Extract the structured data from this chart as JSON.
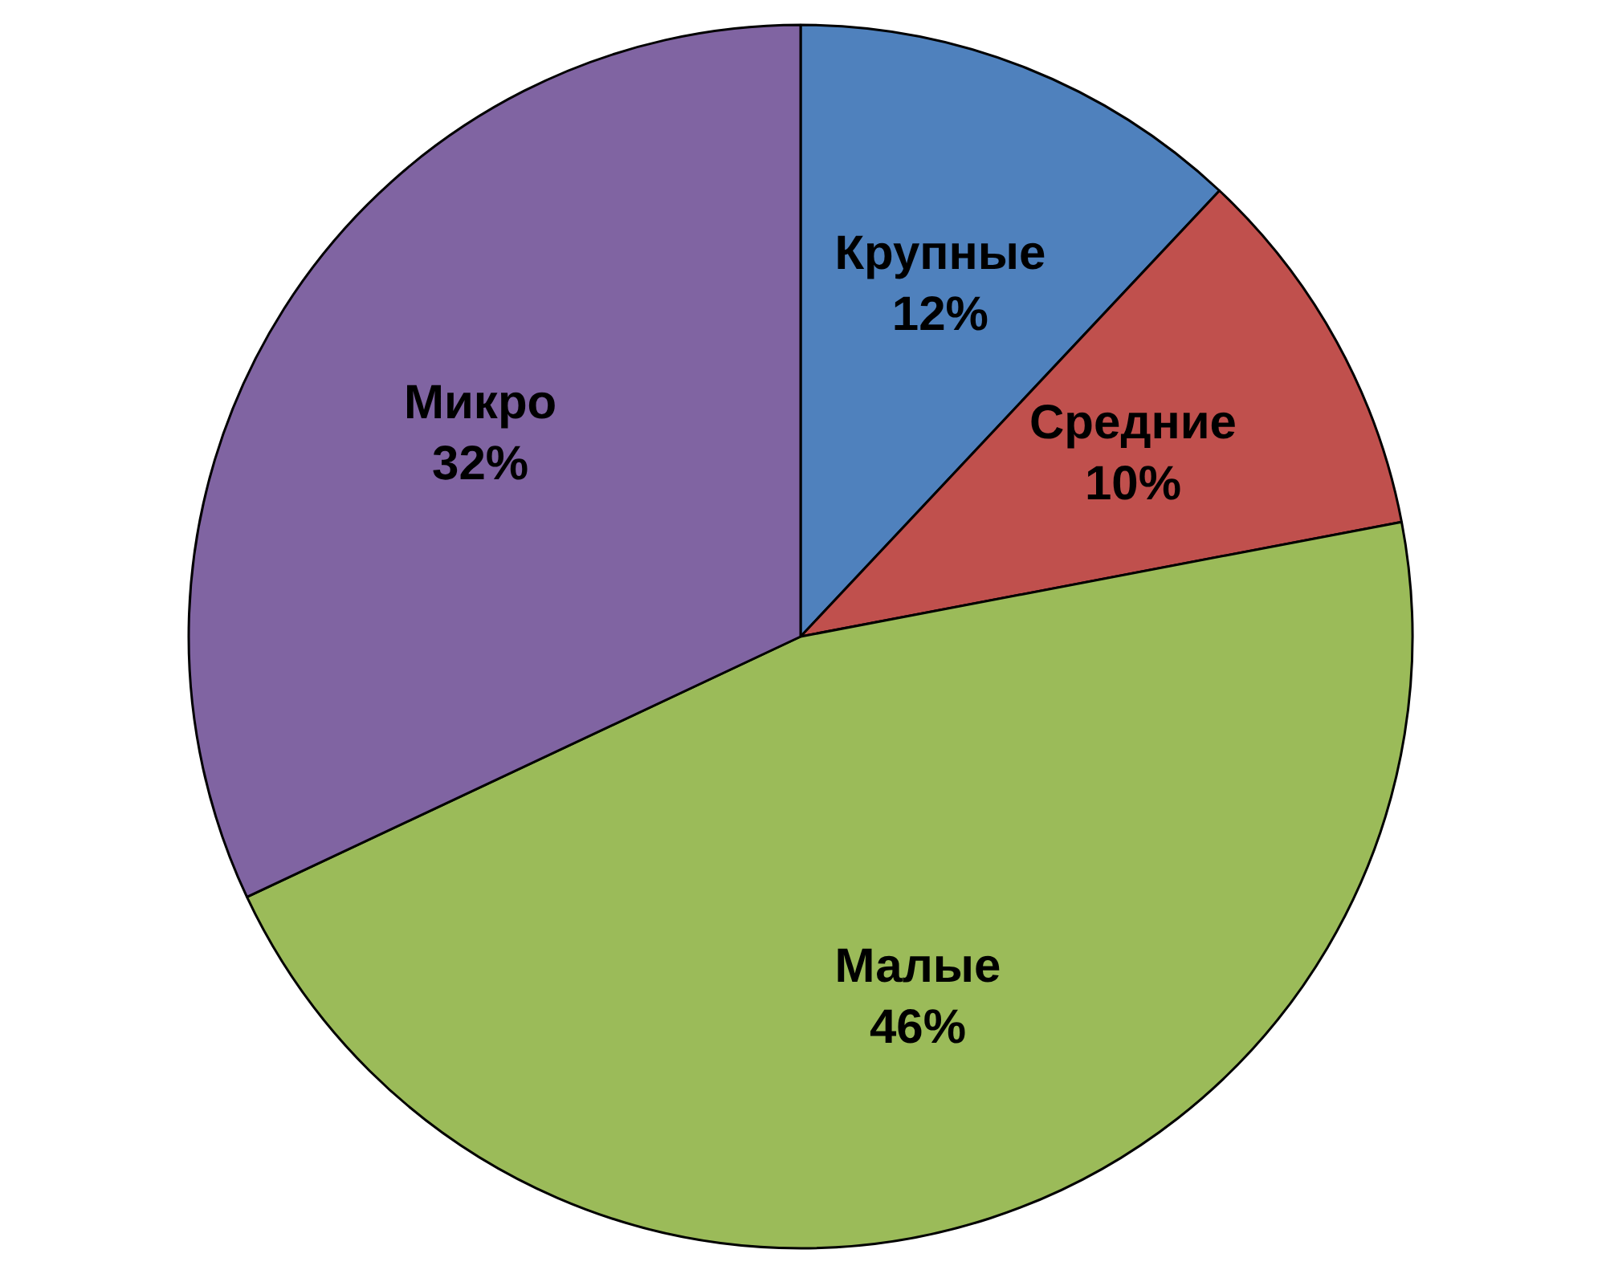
{
  "chart_data": {
    "type": "pie",
    "categories": [
      "Крупные",
      "Средние",
      "Малые",
      "Микро"
    ],
    "values": [
      12,
      10,
      46,
      32
    ],
    "value_labels": [
      "12%",
      "10%",
      "46%",
      "32%"
    ],
    "colors": [
      "#4f81bd",
      "#c0504d",
      "#9bbb59",
      "#8064a2"
    ]
  }
}
